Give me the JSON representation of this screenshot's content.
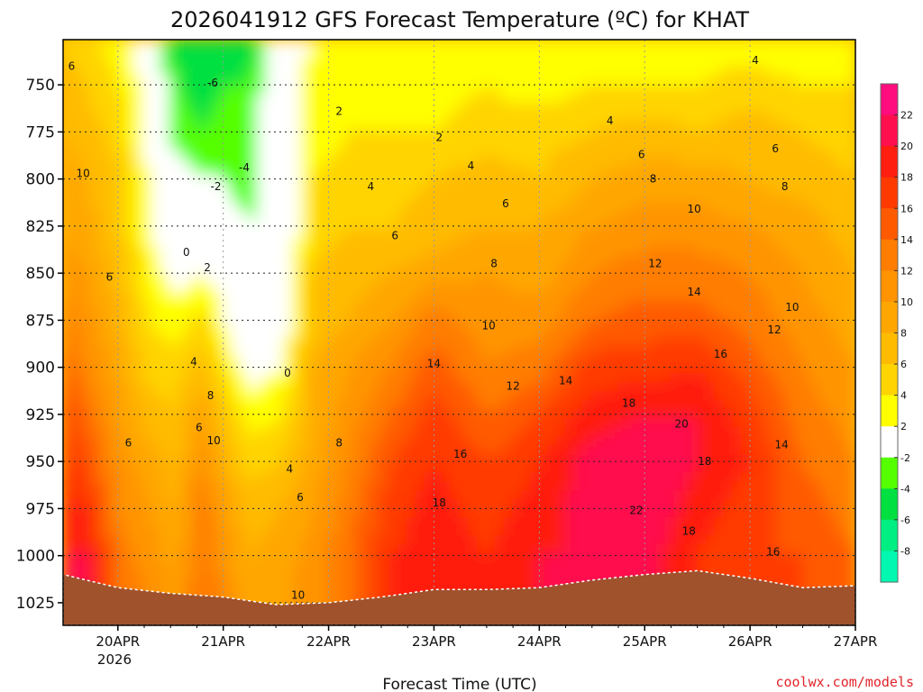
{
  "chart_data": {
    "type": "heatmap",
    "title": "2026041912 GFS Forecast Temperature (ºC) for KHAT",
    "xlabel": "Forecast Time (UTC)",
    "ylabel": "",
    "credit": "coolwx.com/models",
    "x_ticks": [
      "20APR",
      "21APR",
      "22APR",
      "23APR",
      "24APR",
      "25APR",
      "26APR",
      "27APR"
    ],
    "x_tick_sub": "2026",
    "y_ticks": [
      750,
      775,
      800,
      825,
      850,
      875,
      900,
      925,
      950,
      975,
      1000,
      1025
    ],
    "y_unit": "hPa",
    "ylim": [
      726,
      1037
    ],
    "xlim_days": [
      -0.52,
      7.0
    ],
    "colorbar": {
      "ticks": [
        22,
        20,
        18,
        16,
        14,
        12,
        10,
        8,
        6,
        4,
        2,
        -2,
        -4,
        -6,
        -8
      ],
      "bands": [
        {
          "min": 22,
          "max": 24,
          "color": "#ff0d7f"
        },
        {
          "min": 20,
          "max": 22,
          "color": "#ff0f4e"
        },
        {
          "min": 18,
          "max": 20,
          "color": "#ff1e10"
        },
        {
          "min": 16,
          "max": 18,
          "color": "#ff3a00"
        },
        {
          "min": 14,
          "max": 16,
          "color": "#ff5a00"
        },
        {
          "min": 12,
          "max": 14,
          "color": "#ff7d00"
        },
        {
          "min": 10,
          "max": 12,
          "color": "#ff9400"
        },
        {
          "min": 8,
          "max": 10,
          "color": "#ffa700"
        },
        {
          "min": 6,
          "max": 8,
          "color": "#ffbb00"
        },
        {
          "min": 4,
          "max": 6,
          "color": "#ffd400"
        },
        {
          "min": 2,
          "max": 4,
          "color": "#ffff00"
        },
        {
          "min": -2,
          "max": 2,
          "color": "#ffffff"
        },
        {
          "min": -4,
          "max": -2,
          "color": "#55ff00"
        },
        {
          "min": -6,
          "max": -4,
          "color": "#00e040"
        },
        {
          "min": -8,
          "max": -6,
          "color": "#00ef83"
        },
        {
          "min": -10,
          "max": -8,
          "color": "#00f8b0"
        }
      ]
    },
    "ground_color": "#a0522d",
    "columns": [
      {
        "day": -0.52,
        "temps": [
          6,
          7,
          8,
          9,
          10,
          11,
          13,
          15,
          17,
          18,
          19,
          20,
          21
        ]
      },
      {
        "day": -0.3,
        "temps": [
          5,
          6,
          7,
          8,
          9,
          10,
          11,
          12,
          14,
          16,
          18,
          20,
          21
        ]
      },
      {
        "day": 0.0,
        "temps": [
          3,
          4,
          5,
          6,
          6,
          7,
          8,
          9,
          10,
          11,
          12,
          13,
          14
        ]
      },
      {
        "day": 0.3,
        "temps": [
          1,
          1,
          1,
          2,
          2,
          3,
          4,
          5,
          7,
          9,
          10,
          11,
          12
        ]
      },
      {
        "day": 0.55,
        "temps": [
          -5,
          -4,
          -3,
          -1,
          0,
          1,
          3,
          5,
          6,
          7,
          8,
          9,
          10
        ]
      },
      {
        "day": 0.8,
        "temps": [
          -6,
          -5,
          -4,
          -2,
          0,
          2,
          5,
          7,
          10,
          12,
          13,
          14,
          14
        ]
      },
      {
        "day": 1.0,
        "temps": [
          -5,
          -4,
          -3,
          -2,
          -1,
          1,
          2,
          4,
          6,
          8,
          10,
          11,
          12
        ]
      },
      {
        "day": 1.25,
        "temps": [
          -5,
          -4,
          -3,
          -3,
          -2,
          -2,
          -1,
          1,
          3,
          5,
          7,
          8,
          9
        ]
      },
      {
        "day": 1.55,
        "temps": [
          1,
          1,
          1,
          0,
          -1,
          -1,
          0,
          2,
          4,
          6,
          8,
          9,
          10
        ]
      },
      {
        "day": 1.85,
        "temps": [
          2,
          3,
          3,
          4,
          5,
          6,
          7,
          8,
          8,
          9,
          10,
          11,
          11
        ]
      },
      {
        "day": 2.2,
        "temps": [
          2,
          3,
          4,
          5,
          6,
          7,
          8,
          10,
          11,
          12,
          13,
          14,
          14
        ]
      },
      {
        "day": 2.6,
        "temps": [
          3,
          3,
          4,
          5,
          6,
          8,
          10,
          12,
          14,
          16,
          17,
          18,
          18
        ]
      },
      {
        "day": 3.0,
        "temps": [
          2,
          3,
          4,
          6,
          7,
          9,
          13,
          15,
          17,
          18,
          19,
          19,
          19
        ]
      },
      {
        "day": 3.5,
        "temps": [
          3,
          4,
          5,
          7,
          8,
          10,
          11,
          12,
          14,
          16,
          17,
          18,
          18
        ]
      },
      {
        "day": 4.0,
        "temps": [
          2,
          3,
          5,
          6,
          8,
          9,
          11,
          13,
          16,
          18,
          19,
          20,
          20
        ]
      },
      {
        "day": 4.5,
        "temps": [
          3,
          4,
          6,
          8,
          10,
          12,
          14,
          17,
          19,
          21,
          21,
          20,
          20
        ]
      },
      {
        "day": 5.0,
        "temps": [
          3,
          4,
          7,
          9,
          11,
          13,
          15,
          17,
          20,
          22,
          22,
          21,
          20
        ]
      },
      {
        "day": 5.5,
        "temps": [
          3,
          4,
          6,
          9,
          11,
          13,
          15,
          18,
          20,
          20,
          19,
          18,
          18
        ]
      },
      {
        "day": 6.0,
        "temps": [
          3,
          5,
          7,
          8,
          10,
          12,
          13,
          15,
          17,
          18,
          17,
          16,
          16
        ]
      },
      {
        "day": 6.5,
        "temps": [
          2,
          4,
          6,
          7,
          9,
          10,
          11,
          12,
          13,
          14,
          15,
          16,
          16
        ]
      },
      {
        "day": 7.0,
        "temps": [
          2,
          4,
          5,
          6,
          7,
          8,
          9,
          10,
          11,
          12,
          13,
          14,
          14
        ]
      }
    ],
    "level_grid": [
      730,
      750,
      775,
      800,
      825,
      850,
      875,
      900,
      925,
      950,
      975,
      1000,
      1037
    ],
    "surface_pressure": [
      {
        "day": -0.52,
        "p": 1010
      },
      {
        "day": 0.0,
        "p": 1017
      },
      {
        "day": 0.5,
        "p": 1020
      },
      {
        "day": 1.0,
        "p": 1022
      },
      {
        "day": 1.5,
        "p": 1026
      },
      {
        "day": 2.0,
        "p": 1025
      },
      {
        "day": 2.5,
        "p": 1022
      },
      {
        "day": 3.0,
        "p": 1018
      },
      {
        "day": 3.5,
        "p": 1018
      },
      {
        "day": 4.0,
        "p": 1017
      },
      {
        "day": 4.5,
        "p": 1013
      },
      {
        "day": 5.0,
        "p": 1010
      },
      {
        "day": 5.5,
        "p": 1008
      },
      {
        "day": 6.0,
        "p": 1012
      },
      {
        "day": 6.5,
        "p": 1017
      },
      {
        "day": 7.0,
        "p": 1016
      }
    ],
    "contour_labels": [
      {
        "text": "6",
        "day": -0.44,
        "p": 740
      },
      {
        "text": "10",
        "day": -0.33,
        "p": 797
      },
      {
        "text": "6",
        "day": -0.08,
        "p": 852
      },
      {
        "text": "6",
        "day": 0.1,
        "p": 940
      },
      {
        "text": "-6",
        "day": 0.9,
        "p": 749
      },
      {
        "text": "-4",
        "day": 1.2,
        "p": 794
      },
      {
        "text": "-2",
        "day": 0.93,
        "p": 804
      },
      {
        "text": "0",
        "day": 0.65,
        "p": 839
      },
      {
        "text": "2",
        "day": 0.85,
        "p": 847
      },
      {
        "text": "4",
        "day": 0.72,
        "p": 897
      },
      {
        "text": "6",
        "day": 0.77,
        "p": 932
      },
      {
        "text": "8",
        "day": 0.88,
        "p": 915
      },
      {
        "text": "10",
        "day": 0.91,
        "p": 939
      },
      {
        "text": "0",
        "day": 1.61,
        "p": 903
      },
      {
        "text": "4",
        "day": 1.63,
        "p": 954
      },
      {
        "text": "6",
        "day": 1.73,
        "p": 969
      },
      {
        "text": "10",
        "day": 1.71,
        "p": 1021
      },
      {
        "text": "2",
        "day": 2.1,
        "p": 764
      },
      {
        "text": "4",
        "day": 2.4,
        "p": 804
      },
      {
        "text": "6",
        "day": 2.63,
        "p": 830
      },
      {
        "text": "8",
        "day": 2.1,
        "p": 940
      },
      {
        "text": "2",
        "day": 3.05,
        "p": 778
      },
      {
        "text": "4",
        "day": 3.35,
        "p": 793
      },
      {
        "text": "6",
        "day": 3.68,
        "p": 813
      },
      {
        "text": "8",
        "day": 3.57,
        "p": 845
      },
      {
        "text": "10",
        "day": 3.52,
        "p": 878
      },
      {
        "text": "12",
        "day": 3.75,
        "p": 910
      },
      {
        "text": "14",
        "day": 3.0,
        "p": 898
      },
      {
        "text": "14",
        "day": 4.25,
        "p": 907
      },
      {
        "text": "16",
        "day": 3.25,
        "p": 946
      },
      {
        "text": "18",
        "day": 3.05,
        "p": 972
      },
      {
        "text": "4",
        "day": 4.67,
        "p": 769
      },
      {
        "text": "6",
        "day": 4.97,
        "p": 787
      },
      {
        "text": "8",
        "day": 5.08,
        "p": 800
      },
      {
        "text": "10",
        "day": 5.47,
        "p": 816
      },
      {
        "text": "12",
        "day": 5.1,
        "p": 845
      },
      {
        "text": "14",
        "day": 5.47,
        "p": 860
      },
      {
        "text": "16",
        "day": 5.72,
        "p": 893
      },
      {
        "text": "18",
        "day": 4.85,
        "p": 919
      },
      {
        "text": "20",
        "day": 5.35,
        "p": 930
      },
      {
        "text": "18",
        "day": 5.57,
        "p": 950
      },
      {
        "text": "22",
        "day": 4.92,
        "p": 976
      },
      {
        "text": "18",
        "day": 5.42,
        "p": 987
      },
      {
        "text": "16",
        "day": 6.22,
        "p": 998
      },
      {
        "text": "14",
        "day": 6.3,
        "p": 941
      },
      {
        "text": "4",
        "day": 6.05,
        "p": 737
      },
      {
        "text": "6",
        "day": 6.24,
        "p": 784
      },
      {
        "text": "8",
        "day": 6.33,
        "p": 804
      },
      {
        "text": "10",
        "day": 6.4,
        "p": 868
      },
      {
        "text": "12",
        "day": 6.23,
        "p": 880
      }
    ]
  }
}
